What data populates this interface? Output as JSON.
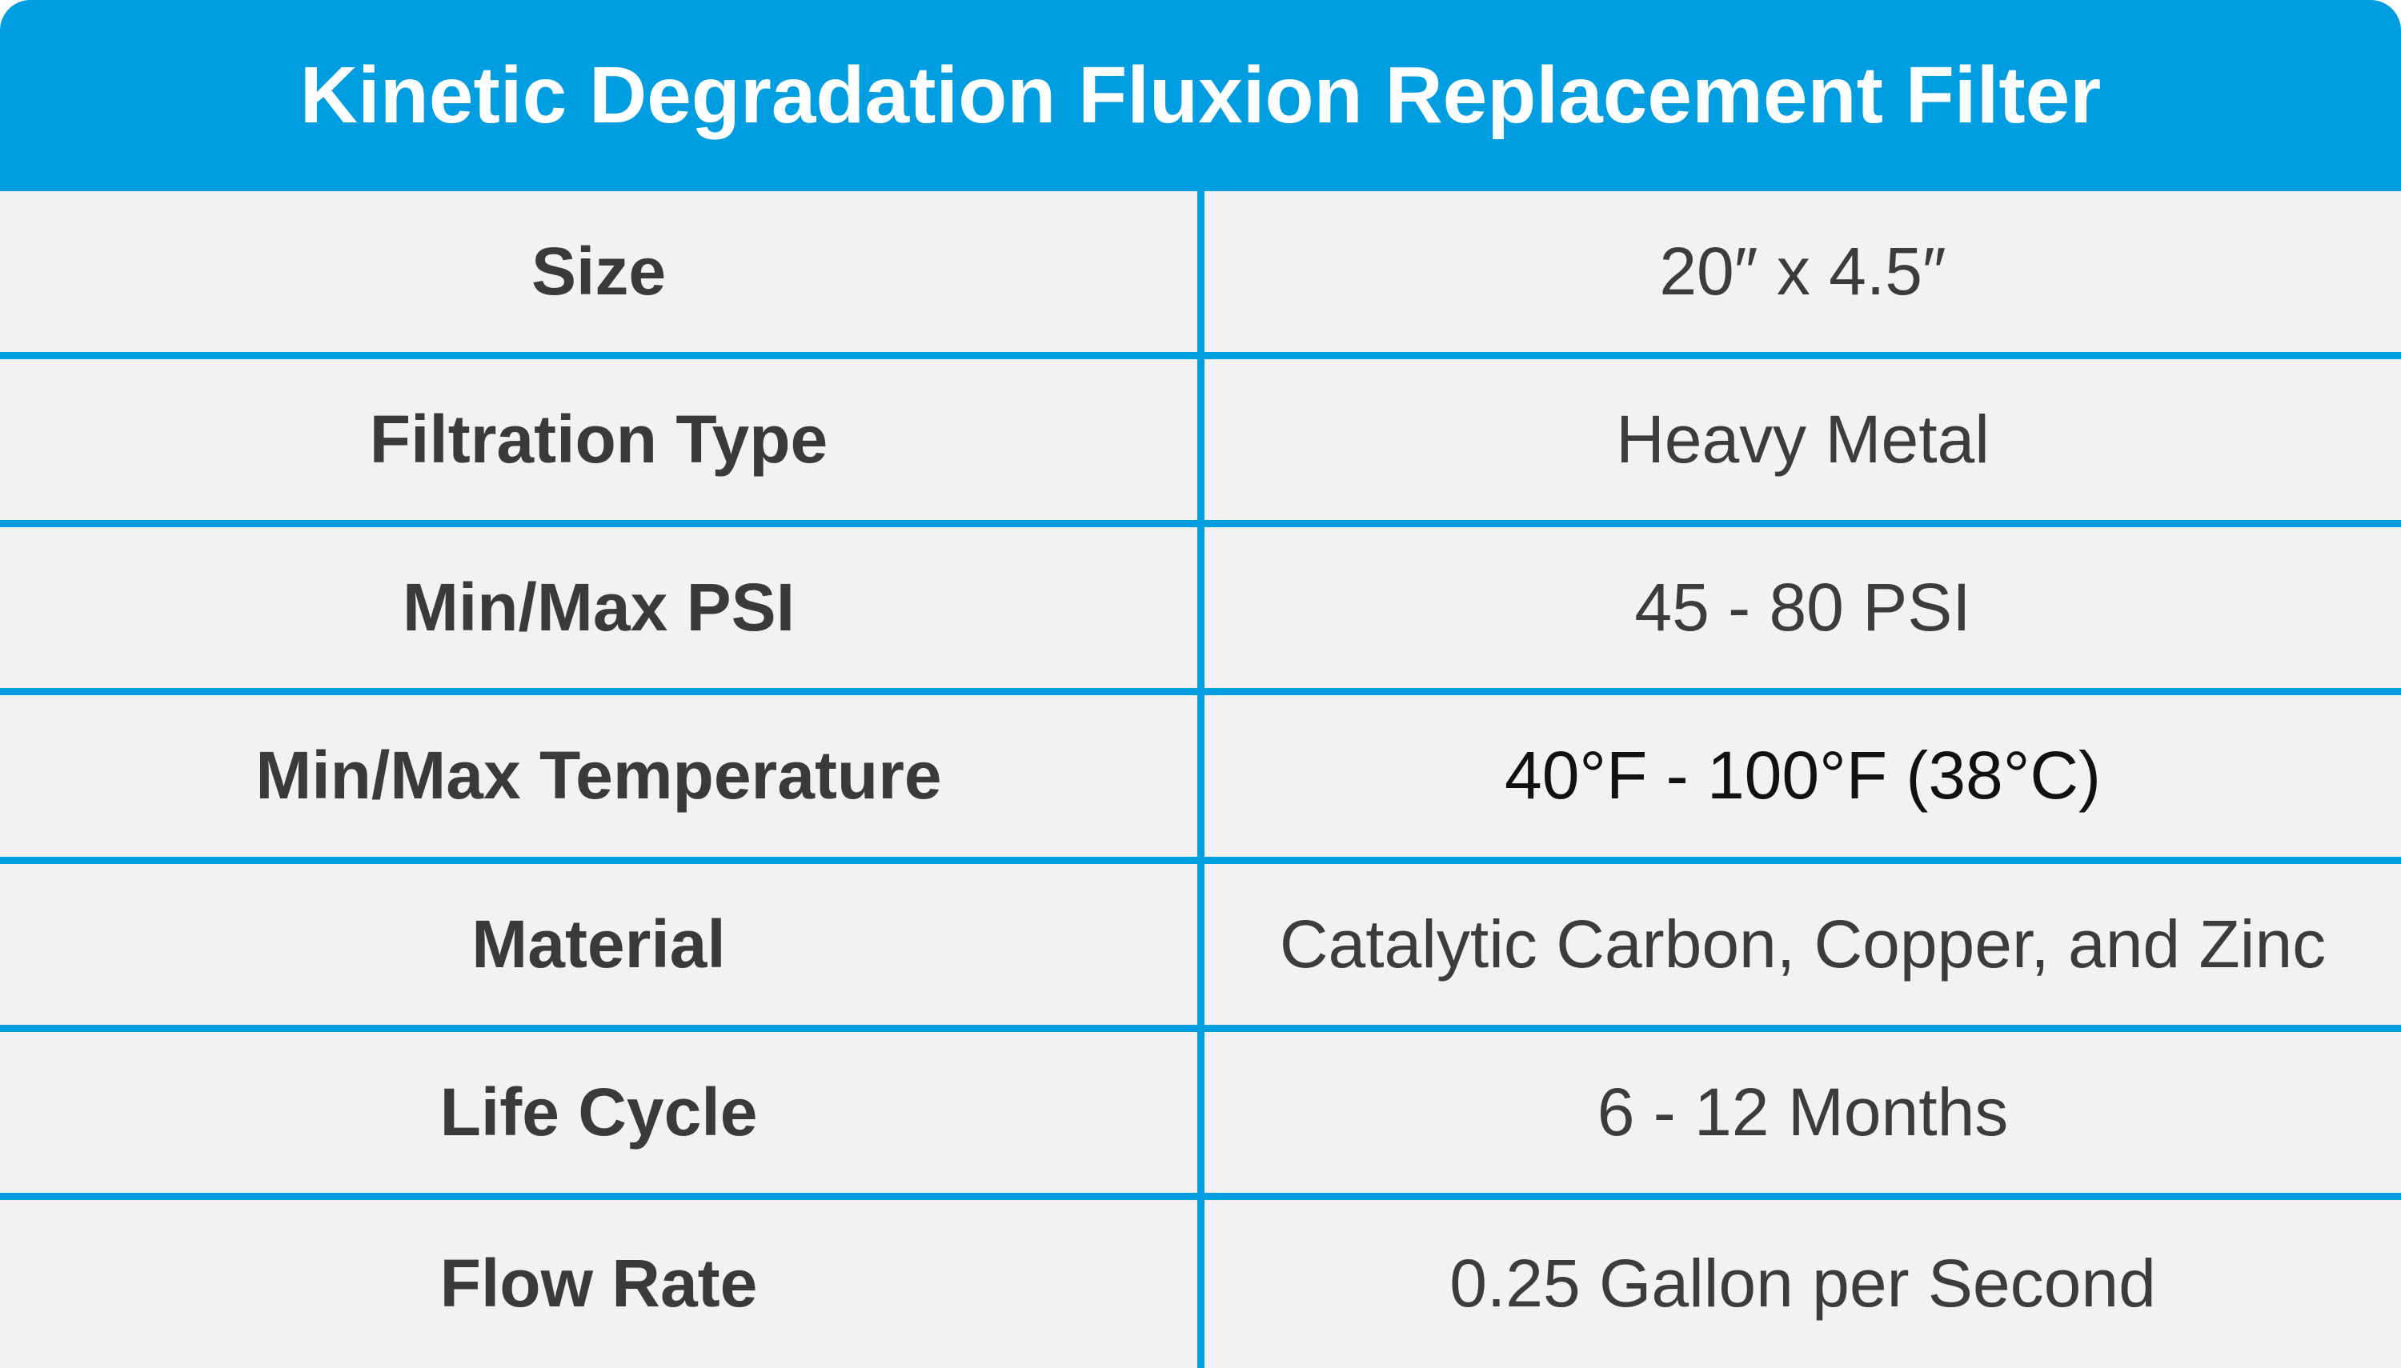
{
  "table": {
    "title": "Kinetic Degradation Fluxion Replacement Filter",
    "rows": [
      [
        "Size",
        "20″ x 4.5″"
      ],
      [
        "Filtration Type",
        "Heavy Metal"
      ],
      [
        "Min/Max PSI",
        "45 - 80 PSI"
      ],
      [
        "Min/Max Temperature",
        "40°F - 100°F (38°C)"
      ],
      [
        "Material",
        "Catalytic Carbon, Copper, and Zinc"
      ],
      [
        "Life Cycle",
        "6 - 12 Months"
      ],
      [
        "Flow Rate",
        "0.25 Gallon per Second"
      ]
    ]
  }
}
